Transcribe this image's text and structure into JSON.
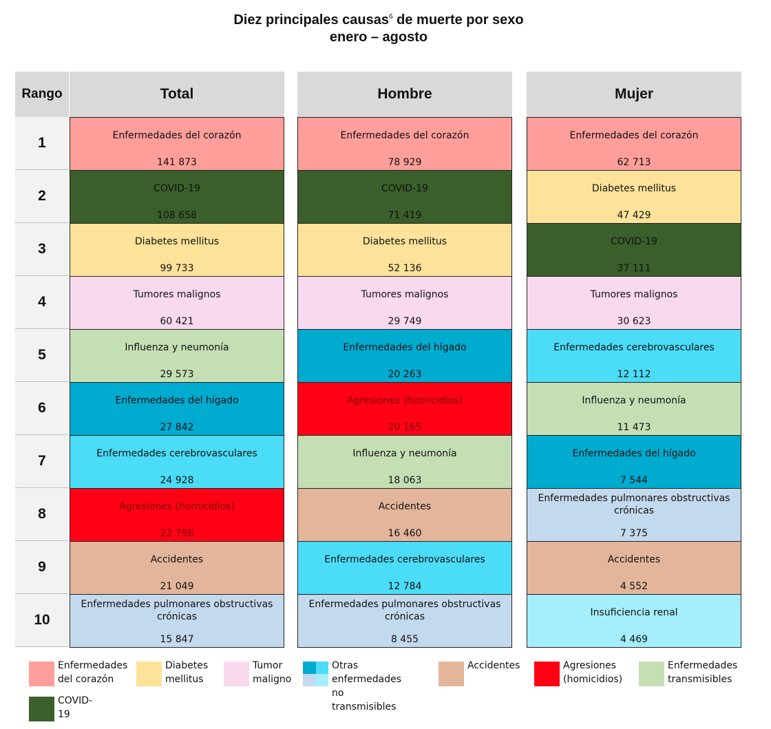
{
  "title": "Diez principales causas",
  "title_sup": "6",
  "title_rest": " de muerte por sexo",
  "subtitle": "enero – agosto",
  "rank_header": "Rango",
  "ranks": [
    "1",
    "2",
    "3",
    "4",
    "5",
    "6",
    "7",
    "8",
    "9",
    "10"
  ],
  "categories": {
    "corazon": {
      "color": "#ff9e9a",
      "text": "#111111"
    },
    "covid": {
      "color": "#3a5f2b",
      "text": "#111111"
    },
    "diabetes": {
      "color": "#fde29a",
      "text": "#111111"
    },
    "tumor": {
      "color": "#f9d9ee",
      "text": "#111111"
    },
    "transmisibles": {
      "color": "#c5dfb4",
      "text": "#111111"
    },
    "higado": {
      "color": "#00abd0",
      "text": "#111111"
    },
    "cerebro": {
      "color": "#4bdcf7",
      "text": "#111111"
    },
    "agresiones": {
      "color": "#ff0015",
      "text": "#7a0009"
    },
    "accidentes": {
      "color": "#e3b59b",
      "text": "#111111"
    },
    "epoc": {
      "color": "#c3d9ed",
      "text": "#111111"
    },
    "renal": {
      "color": "#a5eefb",
      "text": "#111111"
    }
  },
  "chart_data": {
    "type": "table",
    "columns": [
      {
        "header": "Total",
        "rows": [
          {
            "cause": "Enfermedades del corazón",
            "value": "141 873",
            "cat": "corazon"
          },
          {
            "cause": "COVID-19",
            "value": "108 658",
            "cat": "covid"
          },
          {
            "cause": "Diabetes mellitus",
            "value": "99 733",
            "cat": "diabetes"
          },
          {
            "cause": "Tumores malignos",
            "value": "60 421",
            "cat": "tumor"
          },
          {
            "cause": "Influenza y neumonía",
            "value": "29 573",
            "cat": "transmisibles"
          },
          {
            "cause": "Enfermedades del hígado",
            "value": "27 842",
            "cat": "higado"
          },
          {
            "cause": "Enfermedades cerebrovasculares",
            "value": "24 928",
            "cat": "cerebro"
          },
          {
            "cause": "Agresiones (homicidios)",
            "value": "22 798",
            "cat": "agresiones"
          },
          {
            "cause": "Accidentes",
            "value": "21 049",
            "cat": "accidentes"
          },
          {
            "cause": "Enfermedades pulmonares obstructivas crónicas",
            "value": "15 847",
            "cat": "epoc"
          }
        ]
      },
      {
        "header": "Hombre",
        "rows": [
          {
            "cause": "Enfermedades del corazón",
            "value": "78 929",
            "cat": "corazon"
          },
          {
            "cause": "COVID-19",
            "value": "71 419",
            "cat": "covid"
          },
          {
            "cause": "Diabetes mellitus",
            "value": "52 136",
            "cat": "diabetes"
          },
          {
            "cause": "Tumores malignos",
            "value": "29 749",
            "cat": "tumor"
          },
          {
            "cause": "Enfermedades del hígado",
            "value": "20 263",
            "cat": "higado"
          },
          {
            "cause": "Agresiones (homicidios)",
            "value": "20 165",
            "cat": "agresiones"
          },
          {
            "cause": "Influenza y neumonía",
            "value": "18 063",
            "cat": "transmisibles"
          },
          {
            "cause": "Accidentes",
            "value": "16 460",
            "cat": "accidentes"
          },
          {
            "cause": "Enfermedades cerebrovasculares",
            "value": "12 784",
            "cat": "cerebro"
          },
          {
            "cause": "Enfermedades pulmonares obstructivas crónicas",
            "value": "8 455",
            "cat": "epoc"
          }
        ]
      },
      {
        "header": "Mujer",
        "rows": [
          {
            "cause": "Enfermedades del corazón",
            "value": "62 713",
            "cat": "corazon"
          },
          {
            "cause": "Diabetes mellitus",
            "value": "47 429",
            "cat": "diabetes"
          },
          {
            "cause": "COVID-19",
            "value": "37 111",
            "cat": "covid"
          },
          {
            "cause": "Tumores malignos",
            "value": "30 623",
            "cat": "tumor"
          },
          {
            "cause": "Enfermedades cerebrovasculares",
            "value": "12 112",
            "cat": "cerebro"
          },
          {
            "cause": "Influenza y neumonía",
            "value": "11 473",
            "cat": "transmisibles"
          },
          {
            "cause": "Enfermedades del hígado",
            "value": "7 544",
            "cat": "higado"
          },
          {
            "cause": "Enfermedades pulmonares obstructivas crónicas",
            "value": "7 375",
            "cat": "epoc"
          },
          {
            "cause": "Accidentes",
            "value": "4 552",
            "cat": "accidentes"
          },
          {
            "cause": "Insuficiencia renal",
            "value": "4 469",
            "cat": "renal"
          }
        ]
      }
    ]
  },
  "legend": [
    {
      "label": "Enfermedades\ndel corazón",
      "color": "#ff9e9a",
      "name": "legend-corazon"
    },
    {
      "label": "Diabetes\nmellitus",
      "color": "#fde29a",
      "name": "legend-diabetes"
    },
    {
      "label": "Tumor\nmaligno",
      "color": "#f9d9ee",
      "name": "legend-tumor"
    },
    {
      "label": "Otras enfermedades\nno transmisibles",
      "colors": [
        "#00abd0",
        "#4bdcf7",
        "#c3d9ed",
        "#a5eefb"
      ],
      "name": "legend-otras"
    },
    {
      "label": "Accidentes",
      "color": "#e3b59b",
      "name": "legend-accidentes"
    },
    {
      "label": "Agresiones\n(homicidios)",
      "color": "#ff0015",
      "name": "legend-agresiones"
    },
    {
      "label": "Enfermedades\ntransmisibles",
      "color": "#c5dfb4",
      "name": "legend-transmisibles"
    },
    {
      "label": "COVID-19",
      "color": "#3a5f2b",
      "name": "legend-covid"
    }
  ]
}
